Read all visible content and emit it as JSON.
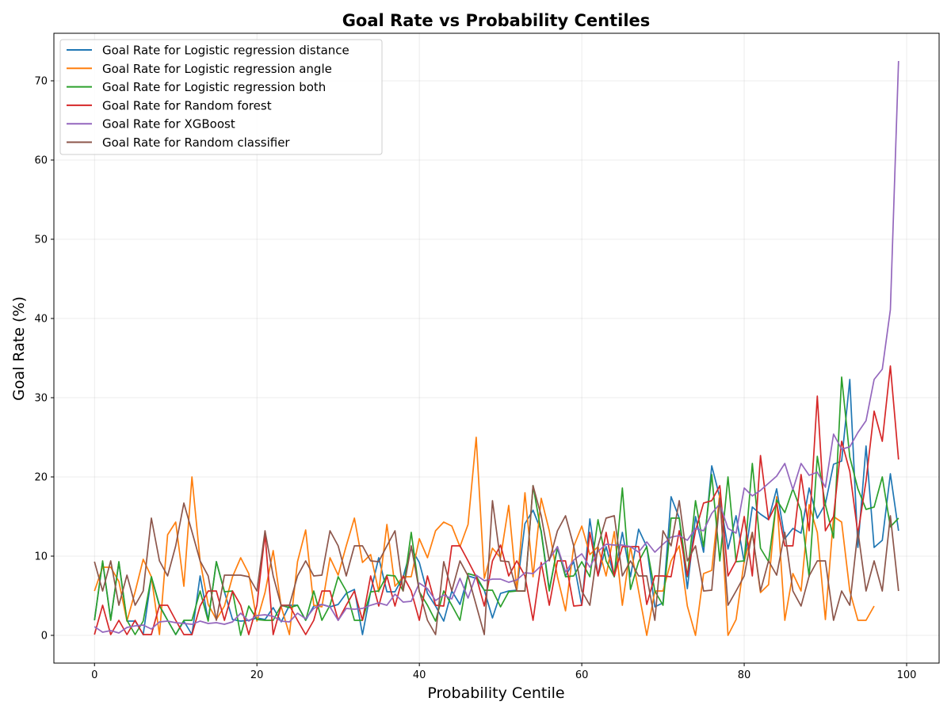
{
  "chart_data": {
    "type": "line",
    "title": "Goal Rate vs Probability Centiles",
    "xlabel": "Probability Centile",
    "ylabel": "Goal Rate (%)",
    "xlim": [
      -5,
      104
    ],
    "ylim": [
      -3.5,
      76
    ],
    "xticks": [
      0,
      20,
      40,
      60,
      80,
      100
    ],
    "yticks": [
      0,
      10,
      20,
      30,
      40,
      50,
      60,
      70
    ],
    "grid": true,
    "legend_position": "upper-left",
    "series": [
      {
        "name": "Goal Rate for Logistic regression distance",
        "color": "#1f77b4",
        "x": [
          0,
          1,
          2,
          3,
          4,
          5,
          6,
          7,
          8,
          9,
          10,
          11,
          12,
          13,
          14,
          15,
          16,
          17,
          18,
          19,
          20,
          21,
          22,
          23,
          24,
          25,
          26,
          27,
          28,
          29,
          30,
          31,
          32,
          33,
          34,
          35,
          36,
          37,
          38,
          39,
          40,
          41,
          42,
          43,
          44,
          45,
          46,
          47,
          48,
          49,
          50,
          51,
          52,
          53,
          54,
          55,
          56,
          57,
          58,
          59,
          60,
          61,
          62,
          63,
          64,
          65,
          66,
          67,
          68,
          69,
          70,
          71,
          72,
          73,
          74,
          75,
          76,
          77,
          78,
          79,
          80,
          81,
          82,
          83,
          84,
          85,
          86,
          87,
          88,
          89,
          90,
          91,
          92,
          93,
          94,
          95,
          96,
          97,
          98,
          99
        ],
        "values": [
          1.9,
          9.3,
          2,
          9.2,
          1.8,
          1.8,
          0.1,
          7.4,
          3.8,
          1.9,
          0.1,
          1.8,
          0.1,
          7.5,
          1.9,
          9.3,
          5.5,
          2,
          1.8,
          1.9,
          2.2,
          2,
          3.5,
          1.7,
          3.8,
          3.8,
          1.9,
          3.7,
          3.9,
          3.6,
          3.9,
          5.3,
          5.8,
          0.1,
          5.5,
          9.8,
          5.5,
          5.5,
          7.4,
          11,
          9.2,
          5.3,
          3.7,
          1.8,
          5.6,
          3.9,
          7.5,
          7.2,
          5.7,
          2.2,
          5.3,
          5.6,
          5.7,
          14.1,
          15.8,
          13.2,
          5.8,
          11,
          7.5,
          9.3,
          3.8,
          14.7,
          7.5,
          11.2,
          7.4,
          13,
          7.4,
          13.4,
          11.2,
          3.6,
          4.1,
          17.5,
          14.8,
          5.9,
          15,
          10.5,
          21.4,
          17.4,
          10.9,
          15.1,
          9.2,
          16.2,
          15.3,
          14.6,
          18.5,
          12.2,
          13.5,
          12.9,
          18.6,
          14.8,
          16.6,
          21.6,
          22,
          32.3,
          11.1,
          23.9,
          11.1,
          12,
          20.4,
          13.2
        ]
      },
      {
        "name": "Goal Rate for Logistic regression angle",
        "color": "#ff7f0e",
        "x": [
          0,
          1,
          2,
          3,
          4,
          5,
          6,
          7,
          8,
          9,
          10,
          11,
          12,
          13,
          14,
          15,
          16,
          17,
          18,
          19,
          20,
          21,
          22,
          23,
          24,
          25,
          26,
          27,
          28,
          29,
          30,
          31,
          32,
          33,
          34,
          35,
          36,
          37,
          38,
          39,
          40,
          41,
          42,
          43,
          44,
          45,
          46,
          47,
          48,
          49,
          50,
          51,
          52,
          53,
          54,
          55,
          56,
          57,
          58,
          59,
          60,
          61,
          62,
          63,
          64,
          65,
          66,
          67,
          68,
          69,
          70,
          71,
          72,
          73,
          74,
          75,
          76,
          77,
          78,
          79,
          80,
          81,
          82,
          83,
          84,
          85,
          86,
          87,
          88,
          89,
          90,
          91,
          92,
          93,
          94,
          95,
          96
        ],
        "values": [
          5.6,
          8.6,
          8.6,
          6.8,
          1.8,
          5.5,
          9.6,
          7.4,
          0.1,
          12.7,
          14.3,
          6.2,
          20,
          9.4,
          3.9,
          2,
          3.7,
          7.4,
          9.8,
          7.8,
          1.8,
          5.4,
          10.7,
          3.6,
          0.1,
          9.3,
          13.3,
          3.8,
          3.6,
          9.8,
          7.6,
          11.3,
          14.8,
          9.2,
          10.2,
          5.5,
          14,
          6.2,
          7.4,
          7.4,
          12.2,
          9.8,
          13.2,
          14.3,
          13.8,
          11.2,
          14,
          25,
          7.2,
          11,
          9.8,
          16.4,
          5.7,
          18,
          7.4,
          17.3,
          13.2,
          7.4,
          3.1,
          11.2,
          13.8,
          10.2,
          11.2,
          7.5,
          13.1,
          3.8,
          11.2,
          5.6,
          0,
          5.6,
          5.6,
          9.4,
          11.3,
          3.7,
          0,
          7.8,
          8.2,
          18,
          0,
          2,
          9.4,
          13,
          5.4,
          6.4,
          17.5,
          1.9,
          7.8,
          5.6,
          16.5,
          13,
          2,
          15,
          14.3,
          5.6,
          1.9,
          1.9,
          3.7
        ]
      },
      {
        "name": "Goal Rate for Logistic regression both",
        "color": "#2ca02c",
        "x": [
          0,
          1,
          2,
          3,
          4,
          5,
          6,
          7,
          8,
          9,
          10,
          11,
          12,
          13,
          14,
          15,
          16,
          17,
          18,
          19,
          20,
          21,
          22,
          23,
          24,
          25,
          26,
          27,
          28,
          29,
          30,
          31,
          32,
          33,
          34,
          35,
          36,
          37,
          38,
          39,
          40,
          41,
          42,
          43,
          44,
          45,
          46,
          47,
          48,
          49,
          50,
          51,
          52,
          53,
          54,
          55,
          56,
          57,
          58,
          59,
          60,
          61,
          62,
          63,
          64,
          65,
          66,
          67,
          68,
          69,
          70,
          71,
          72,
          73,
          74,
          75,
          76,
          77,
          78,
          79,
          80,
          81,
          82,
          83,
          84,
          85,
          86,
          87,
          88,
          89,
          90,
          91,
          92,
          93,
          94,
          95,
          96,
          97,
          98,
          99
        ],
        "values": [
          1.9,
          9.4,
          1.9,
          9.3,
          1.9,
          0.1,
          1.8,
          7.4,
          3.7,
          1.9,
          0.1,
          1.9,
          1.9,
          5.6,
          1.8,
          9.3,
          5.5,
          5.6,
          0,
          3.7,
          2,
          1.9,
          1.9,
          3.8,
          3.5,
          3.8,
          1.9,
          5.6,
          1.9,
          3.8,
          7.4,
          5.6,
          1.9,
          1.9,
          5.5,
          5.6,
          7.6,
          7.5,
          5.6,
          13,
          5.5,
          3.8,
          1.8,
          5.6,
          3.8,
          1.9,
          7.8,
          7.5,
          5.7,
          5.7,
          3.6,
          5.5,
          5.6,
          5.6,
          18.9,
          13,
          5.6,
          11.2,
          7.4,
          7.5,
          9.3,
          7.4,
          14.6,
          9.4,
          7.4,
          18.6,
          5.8,
          9.3,
          11.2,
          5.6,
          3.8,
          14.8,
          14.8,
          7.4,
          17,
          11.2,
          20.3,
          9.4,
          20,
          9.3,
          9.4,
          21.7,
          11,
          9.3,
          17.1,
          15.5,
          18.5,
          15.7,
          7.4,
          22.6,
          16.5,
          12.3,
          32.6,
          22.5,
          18.5,
          15.9,
          16.2,
          20,
          13.7,
          14.8
        ]
      },
      {
        "name": "Goal Rate for Random forest",
        "color": "#d62728",
        "x": [
          0,
          1,
          2,
          3,
          4,
          5,
          6,
          7,
          8,
          9,
          10,
          11,
          12,
          13,
          14,
          15,
          16,
          17,
          18,
          19,
          20,
          21,
          22,
          23,
          24,
          25,
          26,
          27,
          28,
          29,
          30,
          31,
          32,
          33,
          34,
          35,
          36,
          37,
          38,
          39,
          40,
          41,
          42,
          43,
          44,
          45,
          46,
          47,
          48,
          49,
          50,
          51,
          52,
          53,
          54,
          55,
          56,
          57,
          58,
          59,
          60,
          61,
          62,
          63,
          64,
          65,
          66,
          67,
          68,
          69,
          70,
          71,
          72,
          73,
          74,
          75,
          76,
          77,
          78,
          79,
          80,
          81,
          82,
          83,
          84,
          85,
          86,
          87,
          88,
          89,
          90,
          91,
          92,
          93,
          94,
          95,
          96,
          97,
          98,
          99
        ],
        "values": [
          0.1,
          3.8,
          0.1,
          1.9,
          0.1,
          1.9,
          0.1,
          0.1,
          3.8,
          3.8,
          1.9,
          0.1,
          0.1,
          3.7,
          5.6,
          5.6,
          1.9,
          5.6,
          3.8,
          0.1,
          3.8,
          12.8,
          0.1,
          3.8,
          3.8,
          1.9,
          0.1,
          1.9,
          5.6,
          5.6,
          1.9,
          3.8,
          5.6,
          1.9,
          7.5,
          3.7,
          7.5,
          3.7,
          7.5,
          5.6,
          1.9,
          7.5,
          3.8,
          3.7,
          11.3,
          11.3,
          9.4,
          7.4,
          3.7,
          9.4,
          11.4,
          7.5,
          9.4,
          7.5,
          1.9,
          9.2,
          3.8,
          9.4,
          9.4,
          3.7,
          3.8,
          13,
          7.5,
          13,
          7.5,
          11.2,
          11.2,
          11.2,
          3.9,
          7.5,
          7.5,
          7.4,
          13.2,
          7.5,
          13.2,
          16.7,
          17,
          18.9,
          7.5,
          9.4,
          15,
          7.5,
          22.7,
          14.6,
          16.7,
          11.3,
          11.3,
          20.3,
          13.2,
          30.2,
          13.2,
          15,
          24.5,
          20.7,
          12.8,
          19.5,
          28.3,
          24.5,
          34,
          22.2
        ]
      },
      {
        "name": "Goal Rate for XGBoost",
        "color": "#9467bd",
        "x": [
          0,
          1,
          2,
          3,
          4,
          5,
          6,
          7,
          8,
          9,
          10,
          11,
          12,
          13,
          14,
          15,
          16,
          17,
          18,
          19,
          20,
          21,
          22,
          23,
          24,
          25,
          26,
          27,
          28,
          29,
          30,
          31,
          32,
          33,
          34,
          35,
          36,
          37,
          38,
          39,
          40,
          41,
          42,
          43,
          44,
          45,
          46,
          47,
          48,
          49,
          50,
          51,
          52,
          53,
          54,
          55,
          56,
          57,
          58,
          59,
          60,
          61,
          62,
          63,
          64,
          65,
          66,
          67,
          68,
          69,
          70,
          71,
          72,
          73,
          74,
          75,
          76,
          77,
          78,
          79,
          80,
          81,
          82,
          83,
          84,
          85,
          86,
          87,
          88,
          89,
          90,
          91,
          92,
          93,
          94,
          95,
          96,
          97,
          98,
          99
        ],
        "values": [
          1.1,
          0.4,
          0.6,
          0.3,
          1,
          1.2,
          1.3,
          0.8,
          1.7,
          1.8,
          1.6,
          1.5,
          1.4,
          1.8,
          1.5,
          1.6,
          1.4,
          1.7,
          2.8,
          1.8,
          2.5,
          2.6,
          2.4,
          1.8,
          1.7,
          2.8,
          2.1,
          3.4,
          3.9,
          3.6,
          1.9,
          3.4,
          3.3,
          3.4,
          3.8,
          4.1,
          3.8,
          5.2,
          4.2,
          4.3,
          6.6,
          5.9,
          4.4,
          5.1,
          4.6,
          7.2,
          4.7,
          7.6,
          6.9,
          7.1,
          7.1,
          6.7,
          7,
          7.9,
          7.8,
          8.8,
          9.6,
          11.2,
          8,
          9.5,
          10.3,
          8.6,
          10.6,
          11.5,
          11.4,
          11.4,
          11.2,
          10.5,
          11.8,
          10.5,
          11.5,
          12.4,
          12.6,
          12,
          13.5,
          13.2,
          15.4,
          16.6,
          13.5,
          12.9,
          18.6,
          17.6,
          18.3,
          19.2,
          20.1,
          21.7,
          18.4,
          21.7,
          20.2,
          20.6,
          18.7,
          25.4,
          23.5,
          23.8,
          25.6,
          27.1,
          32.3,
          33.6,
          41.1,
          72.5
        ]
      },
      {
        "name": "Goal Rate for Random classifier",
        "color": "#8c564b",
        "x": [
          0,
          1,
          2,
          3,
          4,
          5,
          6,
          7,
          8,
          9,
          10,
          11,
          12,
          13,
          14,
          15,
          16,
          17,
          18,
          19,
          20,
          21,
          22,
          23,
          24,
          25,
          26,
          27,
          28,
          29,
          30,
          31,
          32,
          33,
          34,
          35,
          36,
          37,
          38,
          39,
          40,
          41,
          42,
          43,
          44,
          45,
          46,
          47,
          48,
          49,
          50,
          51,
          52,
          53,
          54,
          55,
          56,
          57,
          58,
          59,
          60,
          61,
          62,
          63,
          64,
          65,
          66,
          67,
          68,
          69,
          70,
          71,
          72,
          73,
          74,
          75,
          76,
          77,
          78,
          79,
          80,
          81,
          82,
          83,
          84,
          85,
          86,
          87,
          88,
          89,
          90,
          91,
          92,
          93,
          94,
          95,
          96,
          97,
          98,
          99
        ],
        "values": [
          9.3,
          5.6,
          9.4,
          3.8,
          7.6,
          3.8,
          5.6,
          14.8,
          9.4,
          7.5,
          11.3,
          16.7,
          13.1,
          9.4,
          7.5,
          1.9,
          7.6,
          7.6,
          7.6,
          7.4,
          5.6,
          13.2,
          7.5,
          3.7,
          3.8,
          7.5,
          9.4,
          7.5,
          7.6,
          13.2,
          11.3,
          7.5,
          11.3,
          11.3,
          9.4,
          9.3,
          11.3,
          13.2,
          5.6,
          11.3,
          5.6,
          1.9,
          0.1,
          9.3,
          5.6,
          9.4,
          7.5,
          3.8,
          0.1,
          17,
          9.4,
          9.3,
          5.6,
          5.6,
          18.9,
          15.1,
          9.4,
          13.2,
          15.1,
          11.3,
          5.6,
          3.8,
          11.3,
          14.8,
          15.1,
          7.5,
          9.4,
          7.5,
          7.5,
          1.9,
          13.2,
          11.3,
          17,
          9.4,
          11.3,
          5.6,
          5.7,
          17.3,
          3.8,
          5.6,
          7.5,
          13,
          5.6,
          9.4,
          7.6,
          13,
          5.6,
          3.7,
          7.5,
          9.4,
          9.4,
          1.9,
          5.6,
          3.8,
          13.2,
          5.6,
          9.4,
          5.6,
          15.1,
          5.6
        ]
      }
    ]
  }
}
